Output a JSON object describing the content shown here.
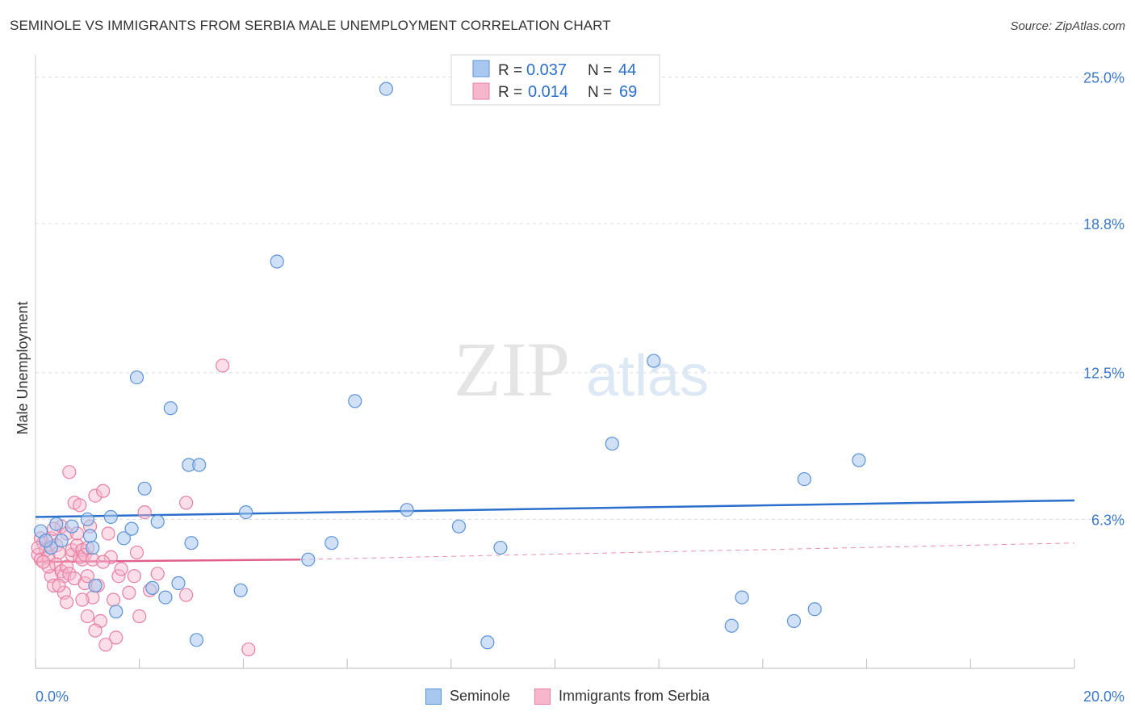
{
  "title": "SEMINOLE VS IMMIGRANTS FROM SERBIA MALE UNEMPLOYMENT CORRELATION CHART",
  "source": "Source: ZipAtlas.com",
  "watermark": {
    "zip": "ZIP",
    "atlas": "atlas"
  },
  "colors": {
    "seminole_fill": "#a9c8f0",
    "seminole_stroke": "#5b93d6",
    "seminole_line": "#2a6fcb",
    "serbia_fill": "#f6b6cb",
    "serbia_stroke": "#e87fa2",
    "serbia_line": "#e0608d",
    "axis_label": "#3a78c9",
    "grid": "#dddddd"
  },
  "legend": {
    "rows": [
      {
        "r_label": "R =",
        "r_value": "0.037",
        "n_label": "N =",
        "n_value": "44"
      },
      {
        "r_label": "R =",
        "r_value": "0.014",
        "n_label": "N =",
        "n_value": "69"
      }
    ]
  },
  "bottom_legend": {
    "seminole": "Seminole",
    "serbia": "Immigrants from Serbia"
  },
  "chart_data": {
    "type": "scatter",
    "title": "SEMINOLE VS IMMIGRANTS FROM SERBIA MALE UNEMPLOYMENT CORRELATION CHART",
    "xlabel": "",
    "ylabel": "Male Unemployment",
    "xlim": [
      0,
      20
    ],
    "ylim": [
      0,
      25.8
    ],
    "x_tick_labels": [
      "0.0%",
      "20.0%"
    ],
    "y_ticks": [
      6.3,
      12.5,
      18.8,
      25.0
    ],
    "y_tick_labels": [
      "6.3%",
      "12.5%",
      "18.8%",
      "25.0%"
    ],
    "series": [
      {
        "name": "Seminole",
        "r": 0.037,
        "n": 44,
        "trend": {
          "x0": 0,
          "y0": 6.4,
          "x1": 20,
          "y1": 7.1
        },
        "points": [
          [
            0.1,
            5.8
          ],
          [
            0.3,
            5.1
          ],
          [
            0.5,
            5.4
          ],
          [
            0.7,
            6.0
          ],
          [
            1.0,
            6.3
          ],
          [
            1.05,
            5.6
          ],
          [
            1.1,
            5.1
          ],
          [
            1.15,
            3.5
          ],
          [
            1.45,
            6.4
          ],
          [
            1.55,
            2.4
          ],
          [
            1.7,
            5.5
          ],
          [
            1.85,
            5.9
          ],
          [
            1.95,
            12.3
          ],
          [
            2.1,
            7.6
          ],
          [
            2.25,
            3.4
          ],
          [
            2.35,
            6.2
          ],
          [
            2.5,
            3.0
          ],
          [
            2.6,
            11.0
          ],
          [
            2.75,
            3.6
          ],
          [
            2.95,
            8.6
          ],
          [
            3.0,
            5.3
          ],
          [
            3.1,
            1.2
          ],
          [
            3.15,
            8.6
          ],
          [
            3.95,
            3.3
          ],
          [
            4.05,
            6.6
          ],
          [
            4.65,
            17.2
          ],
          [
            5.25,
            4.6
          ],
          [
            5.7,
            5.3
          ],
          [
            6.15,
            11.3
          ],
          [
            6.75,
            24.5
          ],
          [
            7.15,
            6.7
          ],
          [
            8.15,
            6.0
          ],
          [
            8.7,
            1.1
          ],
          [
            8.95,
            5.1
          ],
          [
            11.1,
            9.5
          ],
          [
            11.9,
            13.0
          ],
          [
            13.4,
            1.8
          ],
          [
            13.6,
            3.0
          ],
          [
            14.6,
            2.0
          ],
          [
            14.8,
            8.0
          ],
          [
            15.0,
            2.5
          ],
          [
            15.85,
            8.8
          ],
          [
            0.2,
            5.4
          ],
          [
            0.4,
            6.1
          ]
        ]
      },
      {
        "name": "Immigrants from Serbia",
        "r": 0.014,
        "n": 69,
        "trend": {
          "x0": 0,
          "y0": 4.5,
          "x1": 5.1,
          "y1": 4.6
        },
        "trend_dashed": {
          "x0": 5.1,
          "y0": 4.6,
          "x1": 20,
          "y1": 5.3
        },
        "points": [
          [
            0.05,
            4.8
          ],
          [
            0.1,
            4.6
          ],
          [
            0.15,
            5.3
          ],
          [
            0.2,
            5.0
          ],
          [
            0.25,
            4.7
          ],
          [
            0.3,
            3.9
          ],
          [
            0.3,
            5.5
          ],
          [
            0.35,
            3.5
          ],
          [
            0.4,
            4.4
          ],
          [
            0.4,
            5.2
          ],
          [
            0.45,
            4.9
          ],
          [
            0.5,
            6.0
          ],
          [
            0.5,
            4.1
          ],
          [
            0.55,
            3.9
          ],
          [
            0.6,
            4.3
          ],
          [
            0.6,
            5.7
          ],
          [
            0.65,
            4.0
          ],
          [
            0.7,
            4.8
          ],
          [
            0.7,
            5.0
          ],
          [
            0.75,
            7.0
          ],
          [
            0.75,
            3.8
          ],
          [
            0.8,
            5.2
          ],
          [
            0.8,
            5.7
          ],
          [
            0.85,
            4.7
          ],
          [
            0.9,
            5.0
          ],
          [
            0.9,
            4.6
          ],
          [
            0.95,
            3.6
          ],
          [
            0.95,
            4.8
          ],
          [
            1.0,
            5.1
          ],
          [
            1.0,
            3.9
          ],
          [
            1.05,
            6.0
          ],
          [
            1.1,
            3.0
          ],
          [
            1.1,
            4.6
          ],
          [
            1.15,
            7.3
          ],
          [
            1.2,
            3.5
          ],
          [
            1.25,
            2.0
          ],
          [
            1.3,
            7.5
          ],
          [
            1.35,
            1.0
          ],
          [
            1.4,
            5.7
          ],
          [
            1.45,
            4.7
          ],
          [
            1.5,
            2.9
          ],
          [
            1.55,
            1.3
          ],
          [
            1.6,
            3.9
          ],
          [
            1.65,
            4.2
          ],
          [
            1.9,
            3.9
          ],
          [
            1.95,
            4.9
          ],
          [
            2.0,
            2.2
          ],
          [
            2.1,
            6.6
          ],
          [
            2.2,
            3.3
          ],
          [
            2.35,
            4.0
          ],
          [
            2.9,
            3.1
          ],
          [
            2.9,
            7.0
          ],
          [
            3.6,
            12.8
          ],
          [
            4.1,
            0.8
          ],
          [
            0.65,
            8.3
          ],
          [
            0.85,
            6.9
          ],
          [
            1.0,
            2.2
          ],
          [
            1.15,
            1.6
          ],
          [
            0.55,
            3.2
          ],
          [
            0.45,
            3.5
          ],
          [
            0.35,
            5.9
          ],
          [
            0.25,
            4.3
          ],
          [
            0.15,
            4.5
          ],
          [
            0.6,
            2.8
          ],
          [
            0.9,
            2.9
          ],
          [
            1.3,
            4.5
          ],
          [
            1.8,
            3.2
          ],
          [
            0.1,
            5.5
          ],
          [
            0.05,
            5.1
          ]
        ]
      }
    ]
  }
}
